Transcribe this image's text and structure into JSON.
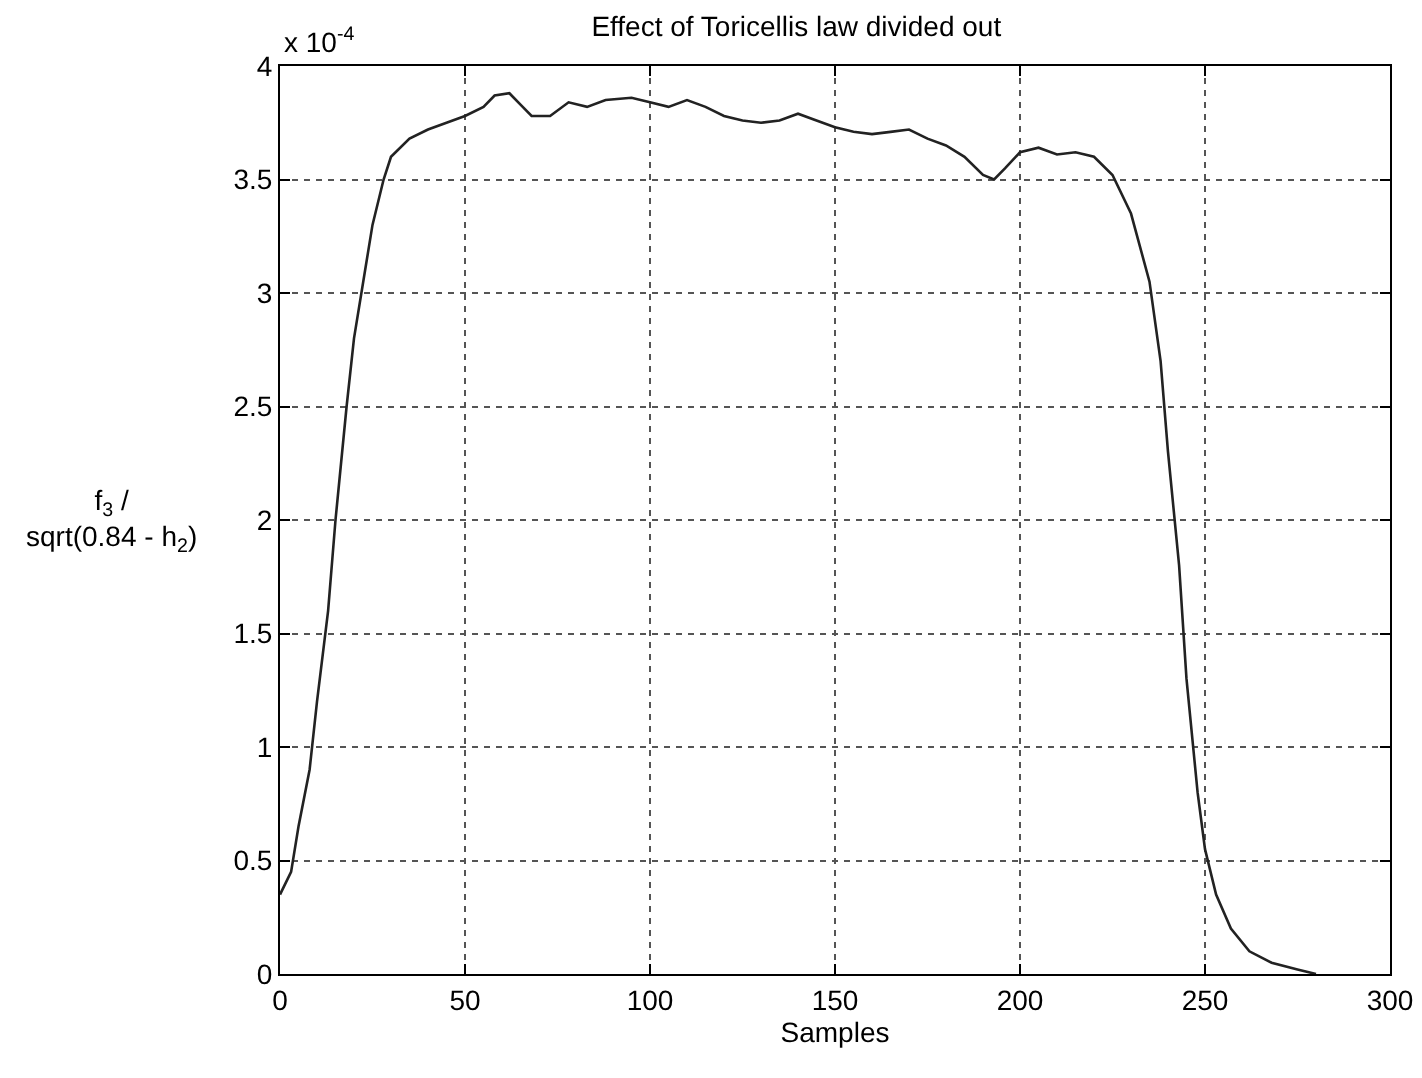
{
  "chart_data": {
    "type": "line",
    "title": "Effect of Toricellis law divided out",
    "xlabel": "Samples",
    "ylabel": "f$_{3}$ /\nsqrt(0.84 - h$_{2}$)",
    "annotations": [
      "x 10$^{-4}$"
    ],
    "x": [
      0,
      3,
      5,
      8,
      10,
      13,
      15,
      18,
      20,
      23,
      25,
      28,
      30,
      35,
      40,
      45,
      50,
      55,
      58,
      62,
      65,
      68,
      73,
      78,
      83,
      88,
      95,
      100,
      105,
      110,
      115,
      120,
      125,
      130,
      135,
      140,
      145,
      150,
      155,
      160,
      165,
      170,
      175,
      180,
      185,
      190,
      193,
      196,
      200,
      205,
      210,
      215,
      220,
      225,
      230,
      235,
      238,
      240,
      243,
      245,
      248,
      250,
      253,
      257,
      262,
      268,
      275,
      280
    ],
    "series": [
      {
        "color": "#222222",
        "values": [
          0.35,
          0.45,
          0.65,
          0.9,
          1.2,
          1.6,
          2.0,
          2.5,
          2.8,
          3.1,
          3.3,
          3.5,
          3.6,
          3.68,
          3.72,
          3.75,
          3.78,
          3.82,
          3.87,
          3.88,
          3.83,
          3.78,
          3.78,
          3.84,
          3.82,
          3.85,
          3.86,
          3.84,
          3.82,
          3.85,
          3.82,
          3.78,
          3.76,
          3.75,
          3.76,
          3.79,
          3.76,
          3.73,
          3.71,
          3.7,
          3.71,
          3.72,
          3.68,
          3.65,
          3.6,
          3.52,
          3.5,
          3.55,
          3.62,
          3.64,
          3.61,
          3.62,
          3.6,
          3.52,
          3.35,
          3.05,
          2.7,
          2.3,
          1.8,
          1.3,
          0.8,
          0.55,
          0.35,
          0.2,
          0.1,
          0.05,
          0.02,
          0.0
        ]
      }
    ],
    "xlim": [
      0,
      300
    ],
    "xticks": [
      0,
      50,
      100,
      150,
      200,
      250,
      300
    ],
    "ylim": [
      0,
      4
    ],
    "yticks": [
      0,
      0.5,
      1,
      1.5,
      2,
      2.5,
      3,
      3.5,
      4
    ],
    "grid": true,
    "marker": "none",
    "line_style": "solid"
  }
}
